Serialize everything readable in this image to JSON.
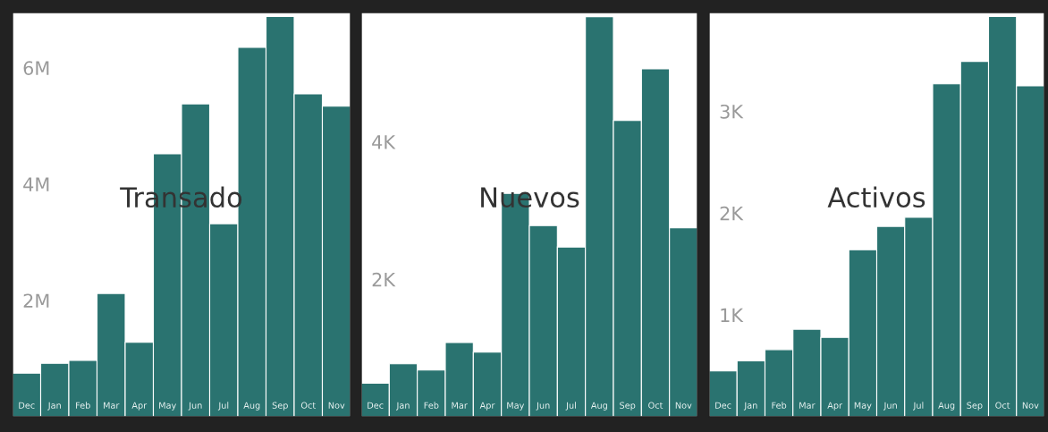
{
  "chart_data": [
    {
      "type": "bar",
      "title": "Transado",
      "categories": [
        "Dec",
        "Jan",
        "Feb",
        "Mar",
        "Apr",
        "May",
        "Jun",
        "Jul",
        "Aug",
        "Sep",
        "Oct",
        "Nov"
      ],
      "color": "#2a7370",
      "values": [
        750000,
        920000,
        970000,
        2120000,
        1280000,
        4520000,
        5380000,
        3320000,
        6350000,
        6880000,
        5550000,
        5340000
      ],
      "ylim": [
        0,
        6950000
      ],
      "yticks": [
        {
          "value": 2000000,
          "label": "2M"
        },
        {
          "value": 4000000,
          "label": "4M"
        },
        {
          "value": 6000000,
          "label": "6M"
        }
      ],
      "grid": false
    },
    {
      "type": "bar",
      "title": "Nuevos",
      "categories": [
        "Dec",
        "Jan",
        "Feb",
        "Mar",
        "Apr",
        "May",
        "Jun",
        "Jul",
        "Aug",
        "Sep",
        "Oct",
        "Nov"
      ],
      "color": "#2a7370",
      "values": [
        490,
        770,
        680,
        1080,
        940,
        3250,
        2780,
        2470,
        5820,
        4310,
        5060,
        2750
      ],
      "ylim": [
        0,
        5880
      ],
      "yticks": [
        {
          "value": 2000,
          "label": "2K"
        },
        {
          "value": 4000,
          "label": "4K"
        }
      ],
      "grid": false
    },
    {
      "type": "bar",
      "title": "Activos",
      "categories": [
        "Dec",
        "Jan",
        "Feb",
        "Mar",
        "Apr",
        "May",
        "Jun",
        "Jul",
        "Aug",
        "Sep",
        "Oct",
        "Nov"
      ],
      "color": "#2a7370",
      "values": [
        450,
        550,
        660,
        860,
        780,
        1640,
        1870,
        1960,
        3270,
        3490,
        3930,
        3250
      ],
      "ylim": [
        0,
        3970
      ],
      "yticks": [
        {
          "value": 1000,
          "label": "1K"
        },
        {
          "value": 2000,
          "label": "2K"
        },
        {
          "value": 3000,
          "label": "3K"
        }
      ],
      "grid": false
    }
  ]
}
